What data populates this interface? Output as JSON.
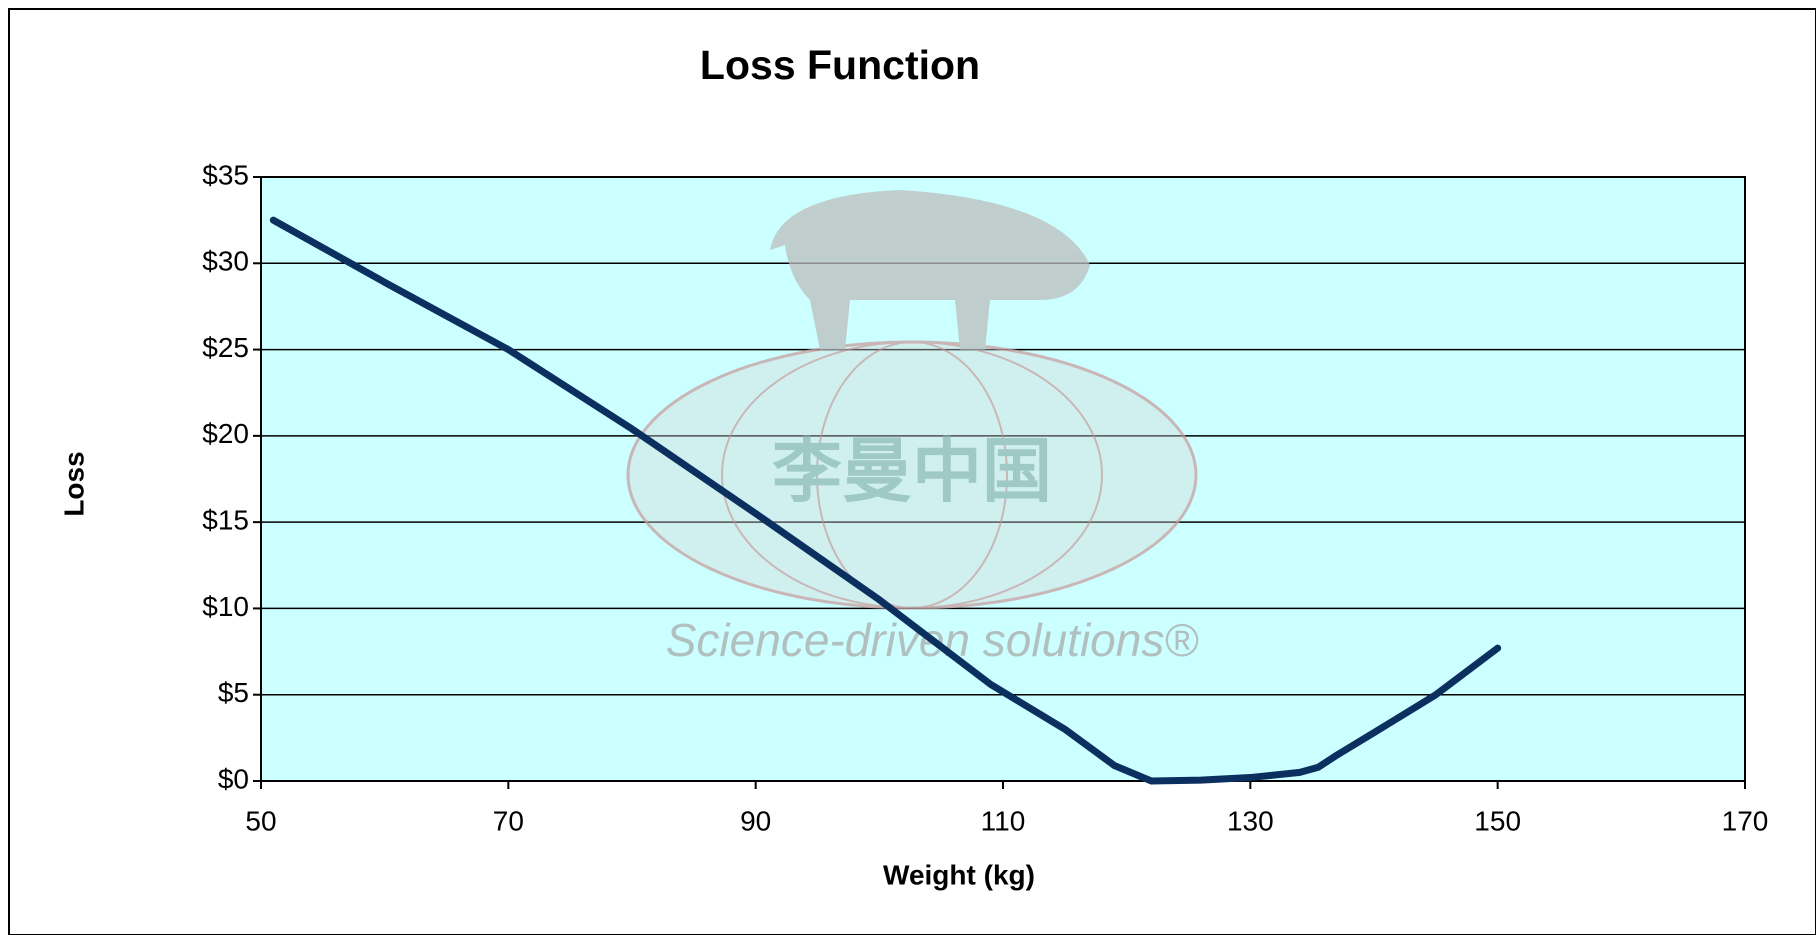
{
  "chart_data": {
    "type": "line",
    "title": "Loss Function",
    "xlabel": "Weight (kg)",
    "ylabel": "Loss",
    "x": [
      51,
      60,
      70,
      80,
      90,
      100,
      109,
      115,
      119,
      122,
      126,
      130,
      134,
      135.5,
      137,
      140,
      145,
      150
    ],
    "series": [
      {
        "name": "Loss",
        "color": "#0b3060",
        "values": [
          32.5,
          28.9,
          25,
          20.4,
          15.5,
          10.5,
          5.6,
          3.0,
          0.9,
          0,
          0.05,
          0.2,
          0.5,
          0.8,
          1.5,
          2.8,
          5.0,
          7.7
        ]
      }
    ],
    "xlim": [
      50,
      170
    ],
    "xticks": [
      50,
      70,
      90,
      110,
      130,
      150,
      170
    ],
    "ylim": [
      0,
      35
    ],
    "yticks": [
      {
        "value": 0,
        "label": "$0"
      },
      {
        "value": 5,
        "label": "$5"
      },
      {
        "value": 10,
        "label": "$10"
      },
      {
        "value": 15,
        "label": "$15"
      },
      {
        "value": 20,
        "label": "$20"
      },
      {
        "value": 25,
        "label": "$25"
      },
      {
        "value": 30,
        "label": "$30"
      },
      {
        "value": 35,
        "label": "$35"
      }
    ],
    "grid": true,
    "plot_background": "#ccffff",
    "watermark_logo_text": "李曼中国",
    "watermark_text": "Science-driven solutions®"
  }
}
